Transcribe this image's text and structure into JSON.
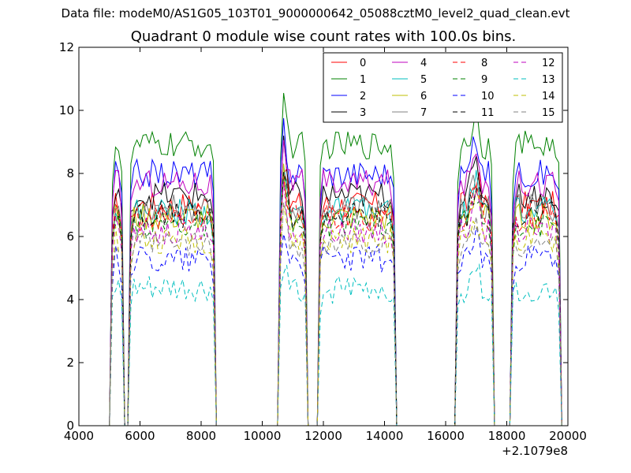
{
  "header": {
    "file_label": "Data file: modeM0/AS1G05_103T01_9000000642_05088cztM0_level2_quad_clean.evt"
  },
  "chart_data": {
    "type": "line",
    "title": "Quadrant 0 module wise count rates with 100.0s bins.",
    "xlabel": "",
    "ylabel": "",
    "x_offset_label": "+2.1079e8",
    "xlim": [
      4000,
      20000
    ],
    "ylim": [
      0,
      12
    ],
    "x_ticks": [
      "4000",
      "6000",
      "8000",
      "10000",
      "12000",
      "14000",
      "16000",
      "18000",
      "20000"
    ],
    "y_ticks": [
      "0",
      "2",
      "4",
      "6",
      "8",
      "10",
      "12"
    ],
    "legend_position": "top-right",
    "segments": [
      {
        "start": 5100,
        "end": 5400,
        "step": 100
      },
      {
        "start": 5700,
        "end": 8400,
        "step": 100
      },
      {
        "start": 10600,
        "end": 11400,
        "step": 100
      },
      {
        "start": 11900,
        "end": 14300,
        "step": 100
      },
      {
        "start": 16400,
        "end": 17500,
        "step": 100
      },
      {
        "start": 18200,
        "end": 19700,
        "step": 100
      }
    ],
    "series": [
      {
        "name": "0",
        "color": "#ff0000",
        "style": "solid",
        "level": 7.0
      },
      {
        "name": "1",
        "color": "#008000",
        "style": "solid",
        "level": 8.9
      },
      {
        "name": "2",
        "color": "#0000ff",
        "style": "solid",
        "level": 8.0
      },
      {
        "name": "3",
        "color": "#000000",
        "style": "solid",
        "level": 7.3
      },
      {
        "name": "4",
        "color": "#bf00bf",
        "style": "solid",
        "level": 7.7
      },
      {
        "name": "5",
        "color": "#00bfbf",
        "style": "solid",
        "level": 6.8
      },
      {
        "name": "6",
        "color": "#bfbf00",
        "style": "solid",
        "level": 6.6
      },
      {
        "name": "7",
        "color": "#808080",
        "style": "solid",
        "level": 6.9
      },
      {
        "name": "8",
        "color": "#ff0000",
        "style": "dashed",
        "level": 6.6
      },
      {
        "name": "9",
        "color": "#008000",
        "style": "dashed",
        "level": 6.4
      },
      {
        "name": "10",
        "color": "#0000ff",
        "style": "dashed",
        "level": 5.3
      },
      {
        "name": "11",
        "color": "#000000",
        "style": "dashed",
        "level": 6.7
      },
      {
        "name": "12",
        "color": "#bf00bf",
        "style": "dashed",
        "level": 6.2
      },
      {
        "name": "13",
        "color": "#00bfbf",
        "style": "dashed",
        "level": 4.3
      },
      {
        "name": "14",
        "color": "#bfbf00",
        "style": "dashed",
        "level": 5.9
      },
      {
        "name": "15",
        "color": "#808080",
        "style": "dashed",
        "level": 5.7
      }
    ]
  }
}
